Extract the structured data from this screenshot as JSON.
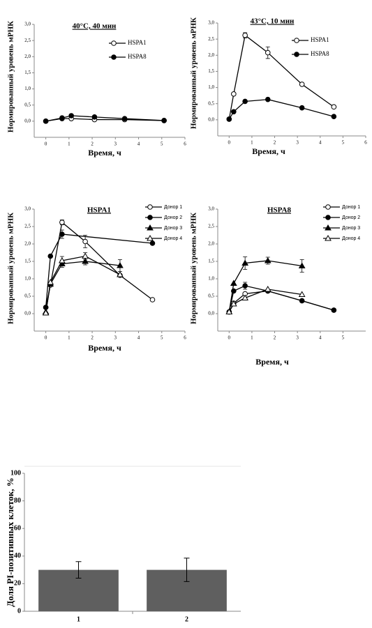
{
  "chart_data": [
    {
      "type": "line",
      "title": "40°C, 40 мин",
      "x_label": "Время, ч",
      "y_label": "Нормированный уровень мРНК",
      "xlim": [
        -0.5,
        6
      ],
      "xticks": [
        0,
        1,
        2,
        3,
        4,
        5,
        6
      ],
      "ylim": [
        -0.5,
        3
      ],
      "yticks": [
        {
          "value": 0,
          "label": "0,0"
        },
        {
          "value": 0.5,
          "label": "0,5"
        },
        {
          "value": 1,
          "label": "1,0"
        },
        {
          "value": 1.5,
          "label": "1,5"
        },
        {
          "value": 2,
          "label": "2,0"
        },
        {
          "value": 2.5,
          "label": "2,5"
        },
        {
          "value": 3,
          "label": "3,0"
        }
      ],
      "series": [
        {
          "name": "HSPA1",
          "color": "#000000",
          "marker": "open-circle",
          "x": [
            0,
            0.7,
            1.1,
            2.1,
            3.4,
            5.1
          ],
          "values": [
            0,
            0.08,
            0.08,
            0.05,
            0.05,
            0.02
          ]
        },
        {
          "name": "HSPA8",
          "color": "#000000",
          "marker": "filled-circle",
          "x": [
            0,
            0.7,
            1.1,
            2.1,
            3.4,
            5.1
          ],
          "values": [
            0,
            0.1,
            0.17,
            0.13,
            0.08,
            0.02
          ]
        }
      ]
    },
    {
      "type": "line",
      "title": "43°C, 10 мин",
      "x_label": "Время, ч",
      "y_label": "Нормированный уровень мРНК",
      "xlim": [
        -0.5,
        6
      ],
      "xticks": [
        0,
        1,
        2,
        3,
        4,
        5,
        6
      ],
      "ylim": [
        -0.5,
        3
      ],
      "yticks": [
        {
          "value": 0,
          "label": "0,0"
        },
        {
          "value": 0.5,
          "label": "0,5"
        },
        {
          "value": 1,
          "label": "1,0"
        },
        {
          "value": 1.5,
          "label": "1,5"
        },
        {
          "value": 2,
          "label": "2,0"
        },
        {
          "value": 2.5,
          "label": "2,5"
        },
        {
          "value": 3,
          "label": "3,0"
        }
      ],
      "series": [
        {
          "name": "HSPA1",
          "color": "#000000",
          "marker": "open-circle",
          "x": [
            0,
            0.2,
            0.7,
            1.7,
            3.2,
            4.6
          ],
          "values": [
            0.02,
            0.8,
            2.62,
            2.08,
            1.1,
            0.4
          ],
          "errors": [
            null,
            null,
            0.08,
            0.18,
            null,
            null
          ]
        },
        {
          "name": "HSPA8",
          "color": "#000000",
          "marker": "filled-circle",
          "x": [
            0,
            0.2,
            0.7,
            1.7,
            3.2,
            4.6
          ],
          "values": [
            0.02,
            0.25,
            0.57,
            0.63,
            0.37,
            0.1
          ]
        }
      ]
    },
    {
      "type": "line",
      "title": "HSPA1",
      "x_label": "Время, ч",
      "y_label": "Нормированный уровень мРНК",
      "xlim": [
        -0.5,
        6
      ],
      "xticks": [
        0,
        1,
        2,
        3,
        4,
        5,
        6
      ],
      "ylim": [
        -0.5,
        3
      ],
      "yticks": [
        {
          "value": 0,
          "label": "0,0"
        },
        {
          "value": 0.5,
          "label": "0,5"
        },
        {
          "value": 1,
          "label": "1,0"
        },
        {
          "value": 1.5,
          "label": "1,5"
        },
        {
          "value": 2,
          "label": "2,0"
        },
        {
          "value": 2.5,
          "label": "2,5"
        },
        {
          "value": 3,
          "label": "3,0"
        }
      ],
      "series": [
        {
          "name": "Донор 1",
          "color": "#000000",
          "marker": "open-circle",
          "x": [
            0,
            0.2,
            0.7,
            1.7,
            3.2,
            4.6
          ],
          "values": [
            0.18,
            0.82,
            2.62,
            2.07,
            1.1,
            0.4
          ],
          "errors": [
            null,
            null,
            0.07,
            0.18,
            null,
            null
          ]
        },
        {
          "name": "Донор 2",
          "color": "#000000",
          "marker": "filled-circle",
          "x": [
            0,
            0.2,
            0.7,
            4.6
          ],
          "values": [
            0.18,
            1.65,
            2.28,
            2.02
          ],
          "errors": [
            null,
            null,
            0.12,
            null
          ]
        },
        {
          "name": "Донор 3",
          "color": "#000000",
          "marker": "filled-triangle",
          "x": [
            0,
            0.2,
            0.7,
            1.7,
            3.2
          ],
          "values": [
            0.05,
            0.85,
            1.43,
            1.5,
            1.38
          ],
          "errors": [
            null,
            null,
            0.1,
            0.1,
            0.17
          ]
        },
        {
          "name": "Донор 4",
          "color": "#000000",
          "marker": "open-triangle",
          "x": [
            0,
            0.2,
            0.7,
            1.7,
            3.2
          ],
          "values": [
            0.02,
            0.9,
            1.52,
            1.65,
            1.12
          ],
          "errors": [
            null,
            null,
            0.12,
            0.1,
            null
          ]
        }
      ]
    },
    {
      "type": "line",
      "title": "HSPA8",
      "x_label": "Время, ч",
      "y_label": "Нормированный уровень мРНК",
      "xlim": [
        -0.5,
        6
      ],
      "xticks": [
        0,
        1,
        2,
        3,
        4,
        5
      ],
      "ylim": [
        -0.5,
        3
      ],
      "yticks": [
        {
          "value": 0,
          "label": "0,0"
        },
        {
          "value": 0.5,
          "label": "0,5"
        },
        {
          "value": 1,
          "label": "1,0"
        },
        {
          "value": 1.5,
          "label": "1,5"
        },
        {
          "value": 2,
          "label": "2,0"
        },
        {
          "value": 2.5,
          "label": "2,5"
        },
        {
          "value": 3,
          "label": "3,0"
        }
      ],
      "series": [
        {
          "name": "Донор 1",
          "color": "#000000",
          "marker": "open-circle",
          "x": [
            0,
            0.2,
            0.7,
            1.7,
            3.2,
            4.6
          ],
          "values": [
            0.05,
            0.3,
            0.57,
            0.65,
            0.37,
            0.1
          ]
        },
        {
          "name": "Донор 2",
          "color": "#000000",
          "marker": "filled-circle",
          "x": [
            0,
            0.2,
            0.7,
            1.7,
            3.2,
            4.6
          ],
          "values": [
            0.05,
            0.65,
            0.8,
            0.65,
            0.37,
            0.1
          ],
          "errors": [
            null,
            null,
            0.1,
            null,
            null,
            null
          ]
        },
        {
          "name": "Донор 3",
          "color": "#000000",
          "marker": "filled-triangle",
          "x": [
            0,
            0.2,
            0.7,
            1.7,
            3.2
          ],
          "values": [
            0.05,
            0.87,
            1.45,
            1.52,
            1.37
          ],
          "errors": [
            null,
            null,
            0.18,
            0.1,
            0.18
          ]
        },
        {
          "name": "Донор 4",
          "color": "#000000",
          "marker": "open-triangle",
          "x": [
            0,
            0.2,
            0.7,
            1.7,
            3.2
          ],
          "values": [
            0.05,
            0.28,
            0.45,
            0.7,
            0.55
          ]
        }
      ]
    },
    {
      "type": "bar",
      "y_label": "Доля PI-позитивных клеток, %",
      "categories": [
        "1",
        "2"
      ],
      "values": [
        30,
        30
      ],
      "errors": [
        6,
        8.5
      ],
      "color": "#5f5f5f",
      "ylim": [
        0,
        100
      ],
      "yticks": [
        0,
        20,
        40,
        60,
        80,
        100
      ]
    }
  ]
}
